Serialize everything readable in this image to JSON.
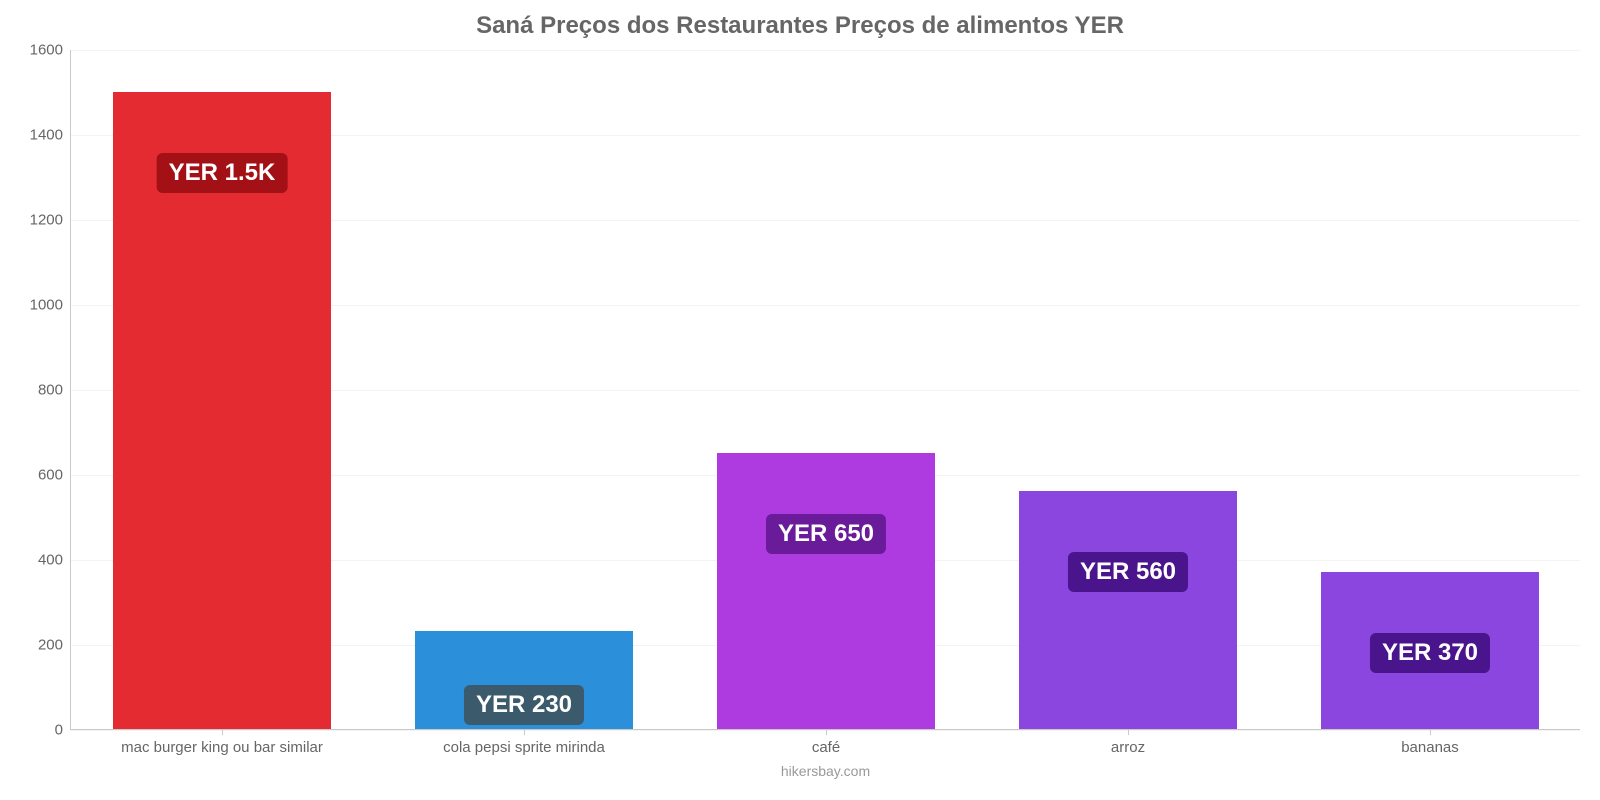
{
  "chart": {
    "type": "bar",
    "title": "Saná Preços dos Restaurantes Preços de alimentos YER",
    "title_fontsize": 24,
    "title_color": "#666666",
    "background_color": "#ffffff",
    "grid_color": "#f3f3f3",
    "axis_line_color": "#c9c9c9",
    "tick_label_color": "#666666",
    "tick_label_fontsize": 15,
    "value_badge_text_color": "#ffffff",
    "value_badge_fontsize": 24,
    "source_label": "hikersbay.com",
    "source_color": "#999999",
    "source_fontsize": 14,
    "ylim": [
      0,
      1600
    ],
    "ytick_step": 200,
    "yticks": [
      0,
      200,
      400,
      600,
      800,
      1000,
      1200,
      1400,
      1600
    ],
    "bar_width": 0.72,
    "categories": [
      "mac burger king ou bar similar",
      "cola pepsi sprite mirinda",
      "café",
      "arroz",
      "bananas"
    ],
    "values": [
      1500,
      230,
      650,
      560,
      370
    ],
    "value_labels": [
      "YER 1.5K",
      "YER 230",
      "YER 650",
      "YER 560",
      "YER 370"
    ],
    "bar_colors": [
      "#e52b32",
      "#2b8fd9",
      "#ae3be0",
      "#8c46e0",
      "#8c46e0"
    ],
    "badge_colors": [
      "#a31015",
      "#3b5a6b",
      "#6a1b9a",
      "#4a148c",
      "#4a148c"
    ]
  }
}
